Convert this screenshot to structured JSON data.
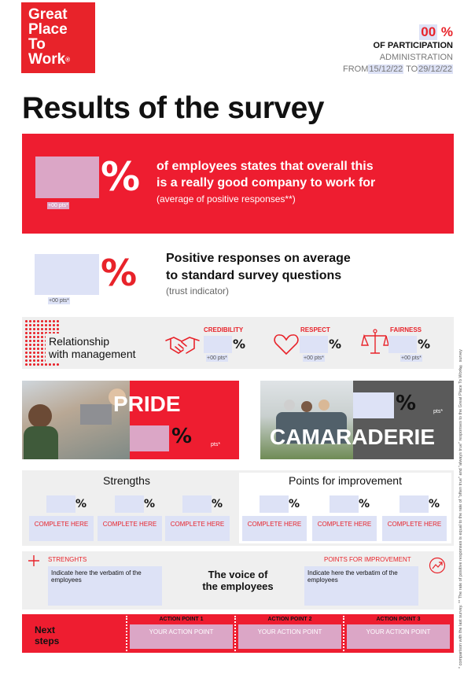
{
  "logo": {
    "lines": [
      "Great",
      "Place",
      "To",
      "Work"
    ],
    "mark": "®"
  },
  "header": {
    "participation_value": "00",
    "participation_unit": " %",
    "participation_label": "OF PARTICIPATION",
    "administration_label": "ADMINISTRATION",
    "from_label": "FROM",
    "from_date": "15/12/22",
    "to_label": "TO",
    "to_date": "29/12/22"
  },
  "title": "Results of the survey",
  "overall": {
    "pct_symbol": "%",
    "pts": "+00 pts*",
    "line1": "of employees states that overall  this",
    "line2": "is a really good company to work for",
    "line3": "(average of positive responses**)"
  },
  "trust": {
    "pct_symbol": "%",
    "pts": "+00 pts*",
    "line1": "Positive responses on average",
    "line2": "to standard survey questions",
    "line3": "(trust indicator)"
  },
  "management": {
    "label_line1": "Relationship",
    "label_line2": "with management",
    "items": [
      {
        "name": "CREDIBILITY",
        "pct": "%",
        "pts": "+00 pts*",
        "icon": "handshake-icon"
      },
      {
        "name": "RESPECT",
        "pct": "%",
        "pts": "+00 pts*",
        "icon": "heart-icon"
      },
      {
        "name": "FAIRNESS",
        "pct": "%",
        "pts": "+00 pts*",
        "icon": "scale-icon"
      }
    ]
  },
  "pillars": {
    "pride": {
      "label": "PRIDE",
      "pct": "%",
      "pts": "pts*"
    },
    "camaraderie": {
      "label": "CAMARADERIE",
      "pct": "%",
      "pts": "pts*"
    }
  },
  "strengths": {
    "title": "Strengths",
    "items": [
      {
        "pct": "%",
        "text": "COMPLETE HERE"
      },
      {
        "pct": "%",
        "text": "COMPLETE HERE"
      },
      {
        "pct": "%",
        "text": "COMPLETE HERE"
      }
    ]
  },
  "improvements": {
    "title": "Points for improvement",
    "items": [
      {
        "pct": "%",
        "text": "COMPLETE HERE"
      },
      {
        "pct": "%",
        "text": "COMPLETE HERE"
      },
      {
        "pct": "%",
        "text": "COMPLETE HERE"
      }
    ]
  },
  "voice": {
    "strengths_label": "STRENGHTS",
    "improvement_label": "POINTS FOR IMPROVEMENT",
    "title_line1": "The voice of",
    "title_line2": "the employees",
    "left_text": "Indicate here the verbatim of the employees",
    "right_text": "Indicate here the verbatim of the employees"
  },
  "next_steps": {
    "label_line1": "Next",
    "label_line2": "steps",
    "actions": [
      {
        "header": "ACTION POINT 1",
        "text": "YOUR ACTION POINT"
      },
      {
        "header": "ACTION POINT 2",
        "text": "YOUR ACTION POINT"
      },
      {
        "header": "ACTION POINT 3",
        "text": "YOUR ACTION POINT"
      }
    ]
  },
  "side_note": "* comparison with the last survey.   ** The rate of positive responses is equal to the rate of \"often true\" and \"always true\" responses to the Great Place To Work® survey",
  "colors": {
    "brand_red": "#e8232a",
    "placeholder": "#dde2f6",
    "placeholder_pink": "#dba6c6"
  }
}
